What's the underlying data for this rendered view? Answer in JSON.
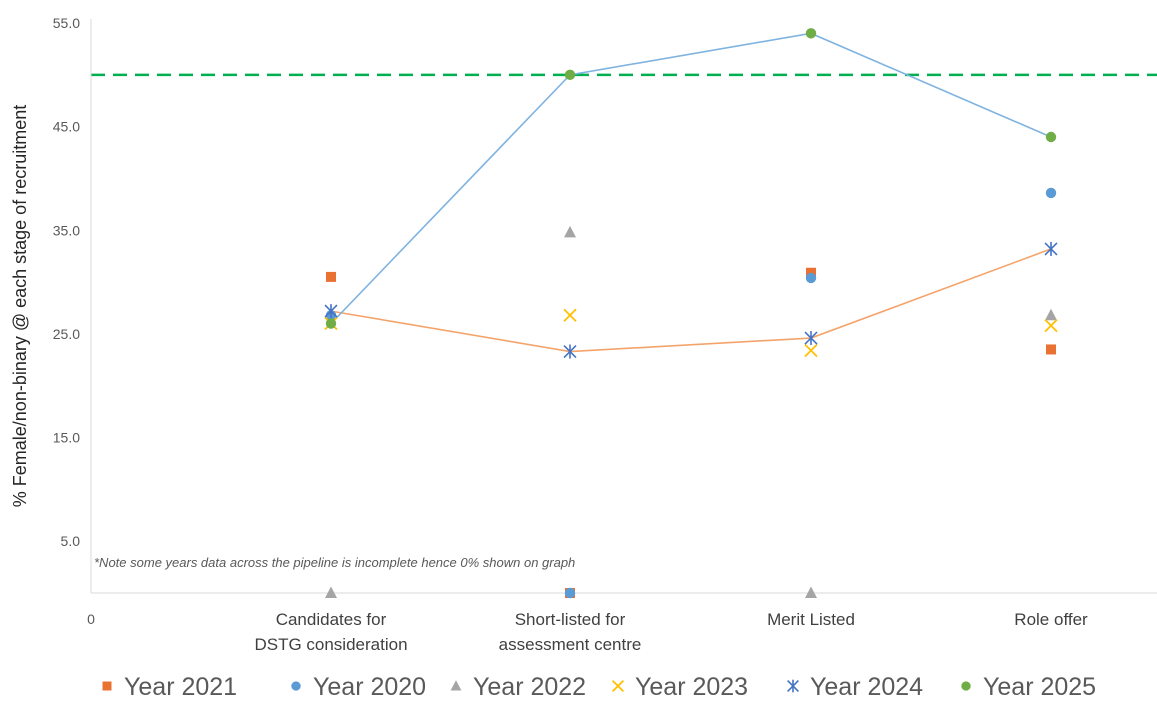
{
  "chart_data": {
    "type": "scatter",
    "title": "",
    "xlabel": "",
    "ylabel": "% Female/non-binary @ each stage of recruitment",
    "ylim": [
      0,
      55
    ],
    "y_ticks": [
      "55.0",
      "45.0",
      "35.0",
      "25.0",
      "15.0",
      "5.0"
    ],
    "y_tick_values": [
      55,
      45,
      35,
      25,
      15,
      5
    ],
    "origin_label": "0",
    "categories": [
      [
        "Candidates for",
        "DSTG consideration"
      ],
      [
        "Short-listed for",
        "assessment centre"
      ],
      [
        "Merit Listed"
      ],
      [
        "Role offer"
      ]
    ],
    "note": "*Note some years data across the pipeline is incomplete hence 0% shown on graph",
    "reference_line": {
      "value": 50,
      "color": "#00b050",
      "style": "dashed"
    },
    "legend_position": "bottom",
    "series": [
      {
        "name": "Year 2021",
        "marker": "square",
        "color": "#e97132",
        "values": [
          30.5,
          0,
          30.9,
          23.5
        ],
        "line": false
      },
      {
        "name": "Year 2020",
        "marker": "circle",
        "color": "#5b9bd5",
        "values": [
          26.8,
          0,
          30.4,
          38.6
        ],
        "line": false
      },
      {
        "name": "Year 2022",
        "marker": "triangle",
        "color": "#a5a5a5",
        "values": [
          0,
          34.8,
          0,
          26.8
        ],
        "line": false
      },
      {
        "name": "Year 2023",
        "marker": "x",
        "color": "#ffc000",
        "values": [
          26.0,
          26.8,
          23.4,
          25.8
        ],
        "line": false
      },
      {
        "name": "Year 2024",
        "marker": "star",
        "color": "#4472c4",
        "values": [
          27.2,
          23.3,
          24.6,
          33.2
        ],
        "line": true,
        "line_color": "#f4a46b"
      },
      {
        "name": "Year 2025",
        "marker": "circle",
        "color": "#70ad47",
        "values": [
          26.0,
          50.0,
          54.0,
          44.0
        ],
        "line": true,
        "line_color": "#7fb3e0"
      }
    ]
  }
}
